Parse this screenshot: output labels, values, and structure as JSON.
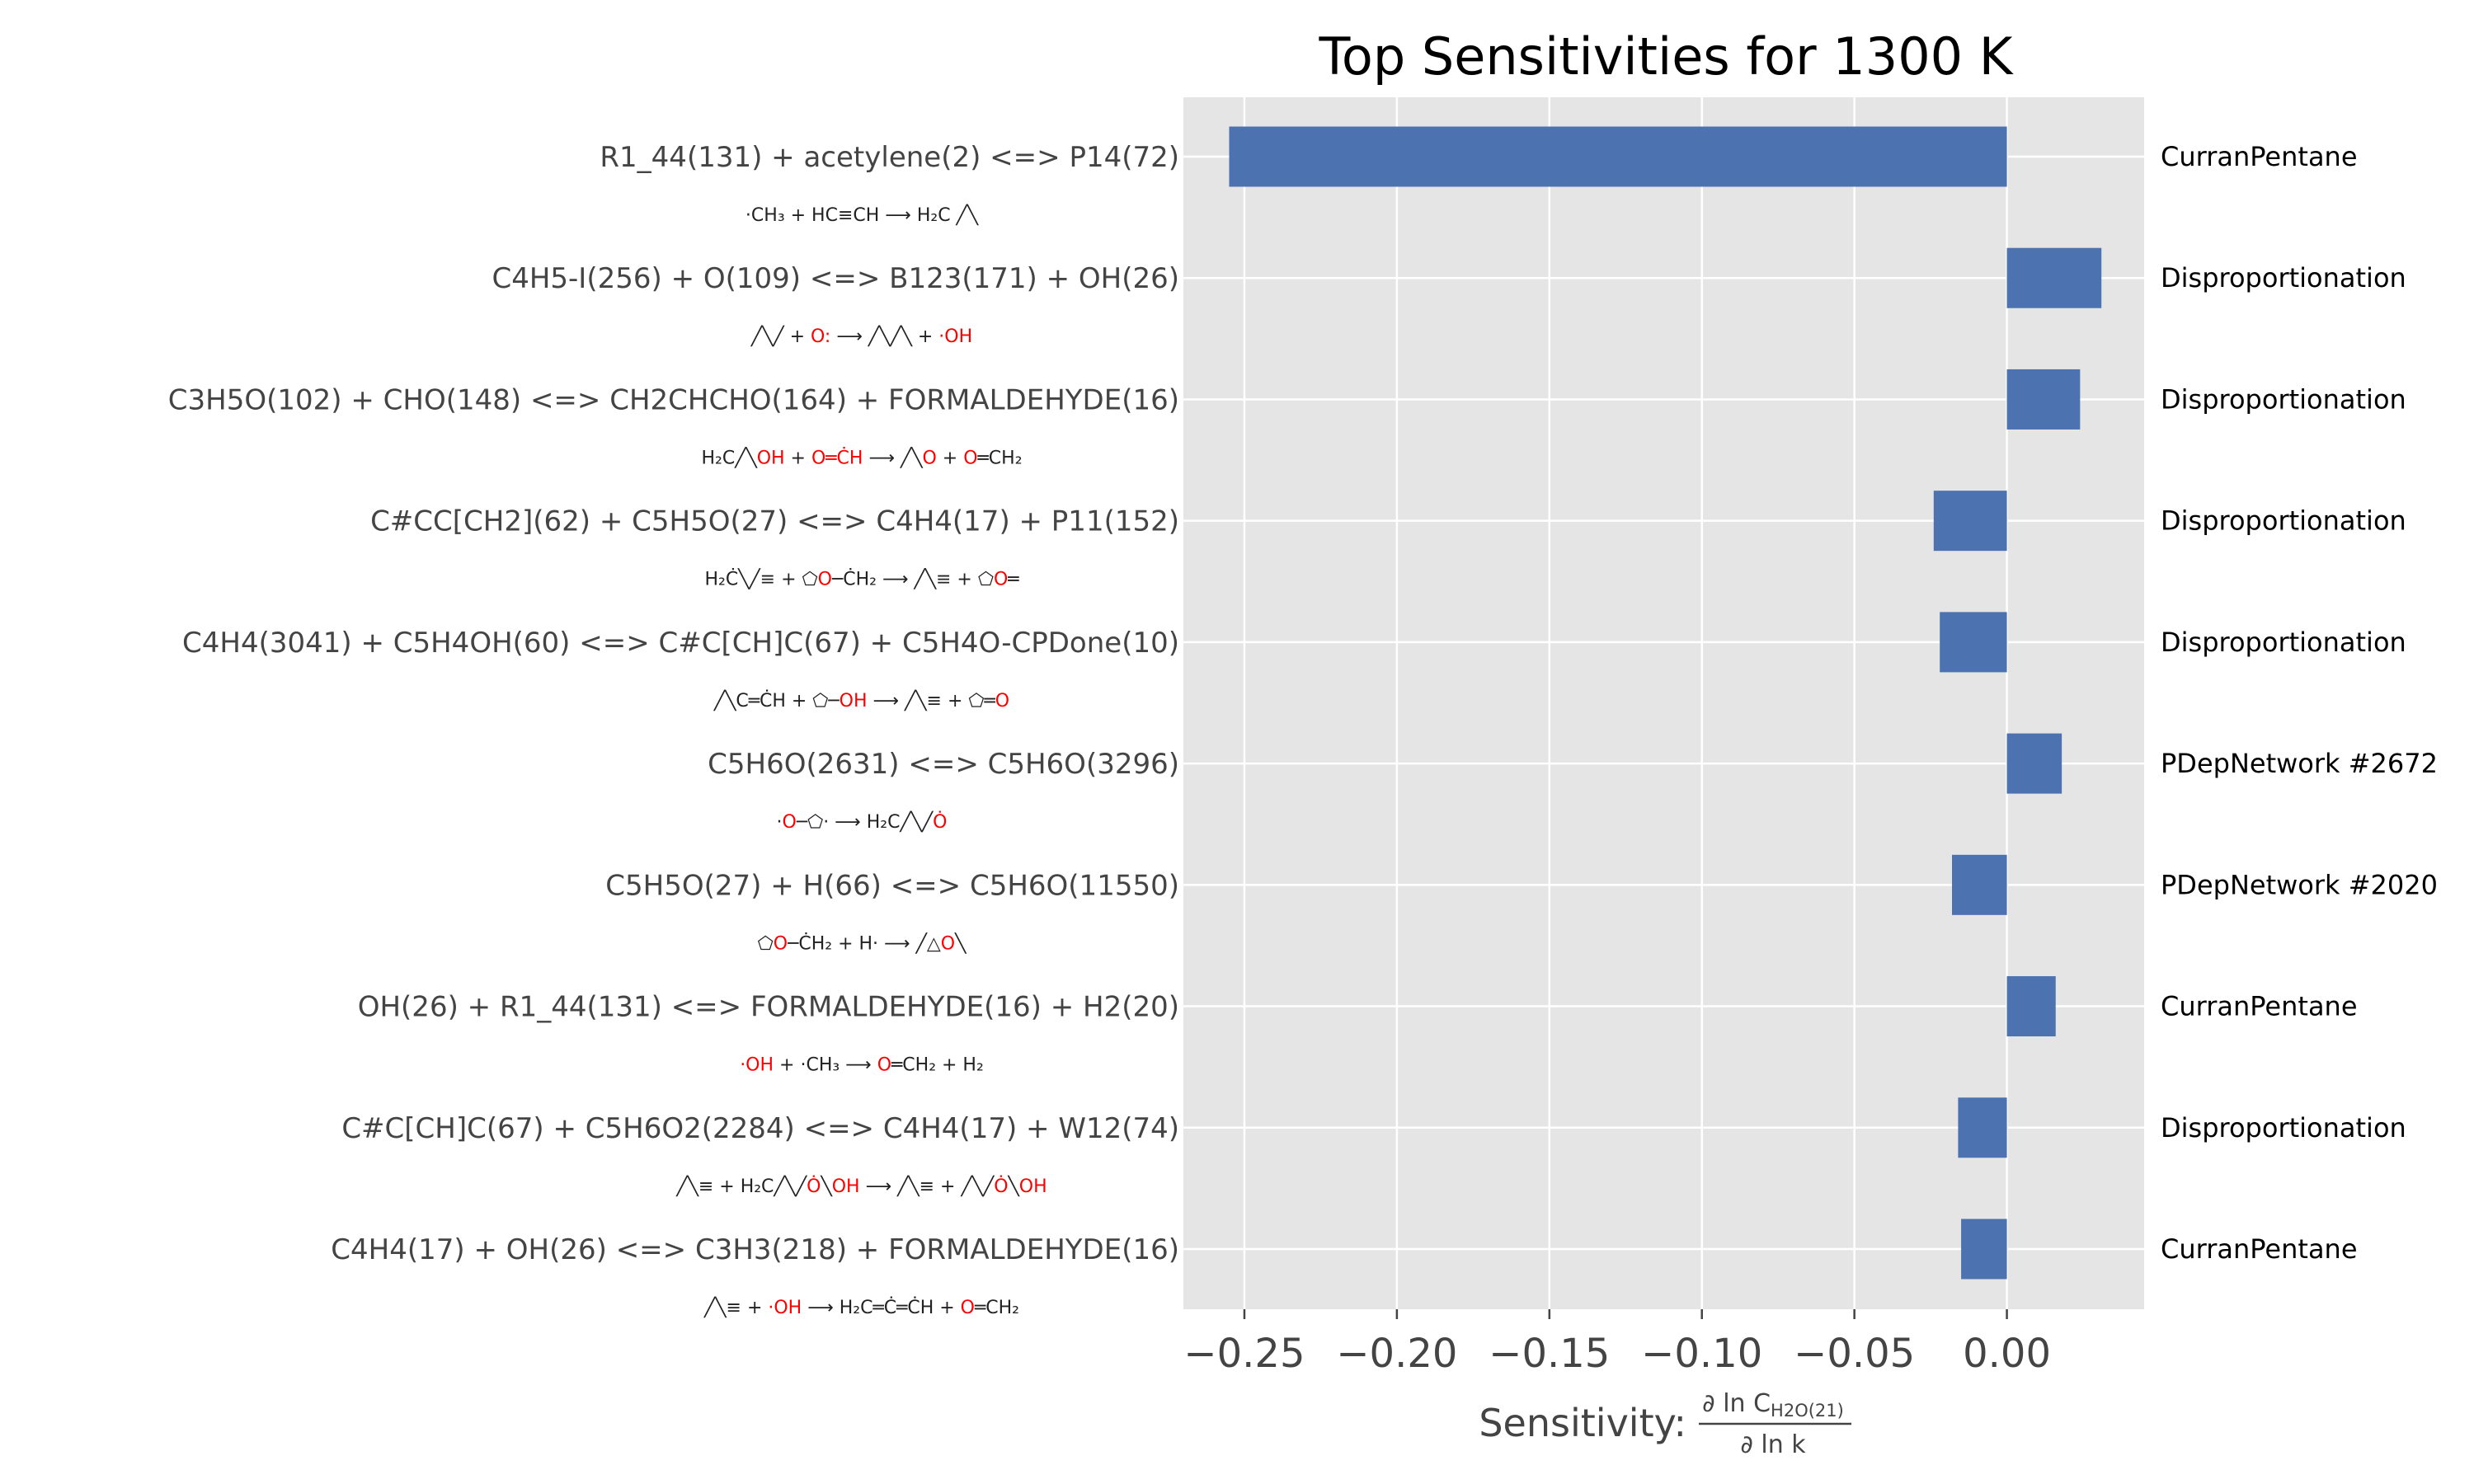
{
  "chart_data": {
    "type": "bar",
    "orientation": "horizontal",
    "title": "Top Sensitivities for 1300 K",
    "xlabel_prefix": "Sensitivity: ",
    "xlabel_numerator": "∂ ln C",
    "xlabel_numerator_sub": "H2O(21)",
    "xlabel_denominator": "∂ ln k",
    "xlim": [
      -0.27,
      0.045
    ],
    "xticks": [
      -0.25,
      -0.2,
      -0.15,
      -0.1,
      -0.05,
      0.0
    ],
    "xtick_labels": [
      "−0.25",
      "−0.20",
      "−0.15",
      "−0.10",
      "−0.05",
      "0.00"
    ],
    "grid": true,
    "bar_color": "#4c72b0",
    "background_color": "#e5e5e5",
    "categories": [
      "R1_44(131) + acetylene(2) <=> P14(72)",
      "C4H5-I(256) + O(109) <=> B123(171) + OH(26)",
      "C3H5O(102) + CHO(148) <=> CH2CHCHO(164) + FORMALDEHYDE(16)",
      "C#CC[CH2](62) + C5H5O(27) <=> C4H4(17) + P11(152)",
      "C4H4(3041) + C5H4OH(60) <=> C#C[CH]C(67) + C5H4O-CPDone(10)",
      "C5H6O(2631) <=> C5H6O(3296)",
      "C5H5O(27) + H(66) <=> C5H6O(11550)",
      "OH(26) + R1_44(131) <=> FORMALDEHYDE(16) + H2(20)",
      "C#C[CH]C(67) + C5H6O2(2284) <=> C4H4(17) + W12(74)",
      "C4H4(17) + OH(26) <=> C3H3(218) + FORMALDEHYDE(16)"
    ],
    "values": [
      -0.255,
      0.031,
      0.024,
      -0.024,
      -0.022,
      0.018,
      -0.018,
      0.016,
      -0.016,
      -0.015
    ],
    "families": [
      "CurranPentane",
      "Disproportionation",
      "Disproportionation",
      "Disproportionation",
      "Disproportionation",
      "PDepNetwork #2672",
      "PDepNetwork #2020",
      "CurranPentane",
      "Disproportionation",
      "CurranPentane"
    ]
  },
  "structures": [
    [
      [
        "·CH₃ + HC≡CH",
        "#222"
      ],
      [
        " ⟶ ",
        "#222"
      ],
      [
        "H₂C ╱╲",
        "#222"
      ]
    ],
    [
      [
        "╱╲╱ + ",
        "#222"
      ],
      [
        "O:",
        "#f00"
      ],
      [
        " ⟶ ╱╲╱╲ + ",
        "#222"
      ],
      [
        "·OH",
        "#f00"
      ]
    ],
    [
      [
        "H₂C╱╲",
        "#222"
      ],
      [
        "OH",
        "#f00"
      ],
      [
        " + ",
        "#222"
      ],
      [
        "O═ĊH",
        "#f00"
      ],
      [
        " ⟶ ╱╲",
        "#222"
      ],
      [
        "O",
        "#f00"
      ],
      [
        " + ",
        "#222"
      ],
      [
        "O",
        "#f00"
      ],
      [
        "═CH₂",
        "#222"
      ]
    ],
    [
      [
        "H₂Ċ╲╱≡ + ⬠",
        "#222"
      ],
      [
        "O",
        "#f00"
      ],
      [
        "─ĊH₂ ⟶ ╱╲≡ + ⬠",
        "#222"
      ],
      [
        "O",
        "#f00"
      ],
      [
        "═",
        "#222"
      ]
    ],
    [
      [
        "╱╲C═ĊH + ⬠─",
        "#222"
      ],
      [
        "OH",
        "#f00"
      ],
      [
        " ⟶ ╱╲≡ + ⬠═",
        "#222"
      ],
      [
        "O",
        "#f00"
      ]
    ],
    [
      [
        "·",
        "#222"
      ],
      [
        "O",
        "#f00"
      ],
      [
        "─⬠· ⟶ H₂C╱╲╱",
        "#222"
      ],
      [
        "Ȯ",
        "#f00"
      ]
    ],
    [
      [
        "⬠",
        "#222"
      ],
      [
        "O",
        "#f00"
      ],
      [
        "─ĊH₂ + H· ⟶ ╱△",
        "#222"
      ],
      [
        "O",
        "#f00"
      ],
      [
        "╲",
        "#222"
      ]
    ],
    [
      [
        "·OH",
        "#f00"
      ],
      [
        " + ·CH₃ ⟶ ",
        "#222"
      ],
      [
        "O",
        "#f00"
      ],
      [
        "═CH₂ + H₂",
        "#222"
      ]
    ],
    [
      [
        "╱╲≡ + H₂C╱╲╱",
        "#222"
      ],
      [
        "Ȯ",
        "#f00"
      ],
      [
        "╲",
        "#222"
      ],
      [
        "OH",
        "#f00"
      ],
      [
        " ⟶ ╱╲≡ + ╱╲╱",
        "#222"
      ],
      [
        "Ȯ",
        "#f00"
      ],
      [
        "╲",
        "#222"
      ],
      [
        "OH",
        "#f00"
      ]
    ],
    [
      [
        "╱╲≡ + ",
        "#222"
      ],
      [
        "·OH",
        "#f00"
      ],
      [
        " ⟶ H₂C═Ċ═ĊH + ",
        "#222"
      ],
      [
        "O",
        "#f00"
      ],
      [
        "═CH₂",
        "#222"
      ]
    ]
  ]
}
